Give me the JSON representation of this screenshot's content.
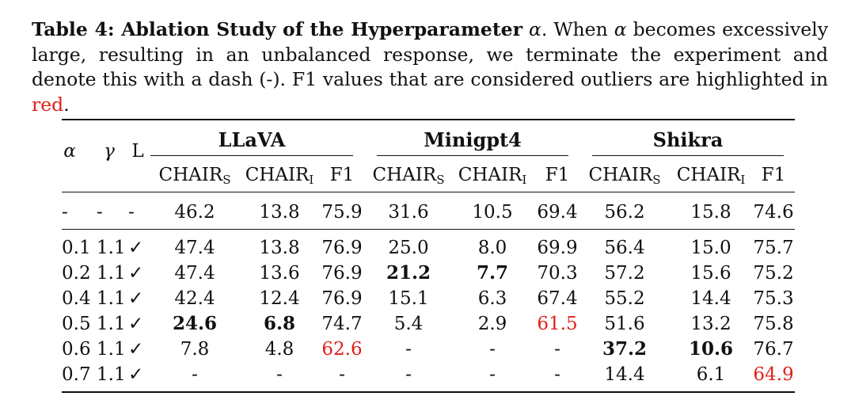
{
  "caption": {
    "label": "Table 4: Ablation Study of the Hyperparameter",
    "alpha1": "α",
    "text1": ". When",
    "alpha2": "α",
    "text2": "becomes excessively large, resulting in an unbalanced response, we terminate the experiment and denote this with a dash (-). F1 values that are considered outliers are highlighted in",
    "red_word": "red",
    "end": "."
  },
  "header": {
    "alpha": "α",
    "gamma": "γ",
    "L": "L",
    "groups": [
      "LLaVA",
      "Minigpt4",
      "Shikra"
    ],
    "sub_headers": [
      {
        "main": "CHAIR",
        "sub": "S"
      },
      {
        "main": "CHAIR",
        "sub": "I"
      },
      {
        "main": "F1",
        "sub": ""
      },
      {
        "main": "CHAIR",
        "sub": "S"
      },
      {
        "main": "CHAIR",
        "sub": "I"
      },
      {
        "main": "F1",
        "sub": ""
      },
      {
        "main": "CHAIR",
        "sub": "S"
      },
      {
        "main": "CHAIR",
        "sub": "I"
      },
      {
        "main": "F1",
        "sub": ""
      }
    ]
  },
  "baseline": [
    "-",
    "-",
    "-",
    "46.2",
    "13.8",
    "75.9",
    "31.6",
    "10.5",
    "69.4",
    "56.2",
    "15.8",
    "74.6"
  ],
  "rows": [
    {
      "cells": [
        "0.1",
        "1.1",
        "✓",
        "47.4",
        "13.8",
        "76.9",
        "25.0",
        "8.0",
        "69.9",
        "56.4",
        "15.0",
        "75.7"
      ],
      "bold": [],
      "red": []
    },
    {
      "cells": [
        "0.2",
        "1.1",
        "✓",
        "47.4",
        "13.6",
        "76.9",
        "21.2",
        "7.7",
        "70.3",
        "57.2",
        "15.6",
        "75.2"
      ],
      "bold": [
        6,
        7
      ],
      "red": []
    },
    {
      "cells": [
        "0.4",
        "1.1",
        "✓",
        "42.4",
        "12.4",
        "76.9",
        "15.1",
        "6.3",
        "67.4",
        "55.2",
        "14.4",
        "75.3"
      ],
      "bold": [],
      "red": []
    },
    {
      "cells": [
        "0.5",
        "1.1",
        "✓",
        "24.6",
        "6.8",
        "74.7",
        "5.4",
        "2.9",
        "61.5",
        "51.6",
        "13.2",
        "75.8"
      ],
      "bold": [
        3,
        4
      ],
      "red": [
        8
      ]
    },
    {
      "cells": [
        "0.6",
        "1.1",
        "✓",
        "7.8",
        "4.8",
        "62.6",
        "-",
        "-",
        "-",
        "37.2",
        "10.6",
        "76.7"
      ],
      "bold": [
        9,
        10
      ],
      "red": [
        5
      ]
    },
    {
      "cells": [
        "0.7",
        "1.1",
        "✓",
        "-",
        "-",
        "-",
        "-",
        "-",
        "-",
        "14.4",
        "6.1",
        "64.9"
      ],
      "bold": [],
      "red": [
        11
      ]
    }
  ]
}
